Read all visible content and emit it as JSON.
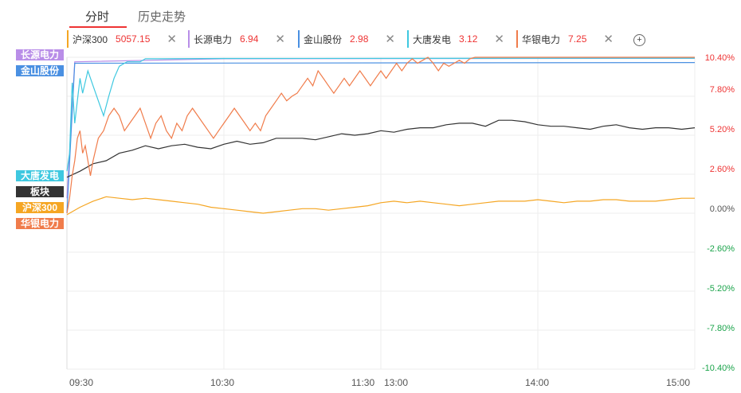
{
  "tabs": {
    "intraday": "分时",
    "history": "历史走势"
  },
  "legend": [
    {
      "name": "沪深300",
      "value": "5057.15",
      "color": "#f5a623"
    },
    {
      "name": "长源电力",
      "value": "6.94",
      "color": "#b98ee8"
    },
    {
      "name": "金山股份",
      "value": "2.98",
      "color": "#4a90e2"
    },
    {
      "name": "大唐发电",
      "value": "3.12",
      "color": "#3ec8e0"
    },
    {
      "name": "华银电力",
      "value": "7.25",
      "color": "#f07c4b"
    }
  ],
  "add_icon": "plus-circle-icon",
  "close_icon": "close-icon",
  "tags": [
    {
      "label": "长源电力",
      "color": "#b98ee8"
    },
    {
      "label": "金山股份",
      "color": "#4a90e2"
    },
    {
      "label": "大唐发电",
      "color": "#3ec8e0"
    },
    {
      "label": "板块",
      "color": "#333333"
    },
    {
      "label": "沪深300",
      "color": "#f5a623"
    },
    {
      "label": "华银电力",
      "color": "#f07c4b"
    }
  ],
  "chart_data": {
    "type": "line",
    "y_ticks": [
      "10.40%",
      "7.80%",
      "5.20%",
      "2.60%",
      "0.00%",
      "-2.60%",
      "-5.20%",
      "-7.80%",
      "-10.40%"
    ],
    "x_ticks": [
      "09:30",
      "10:30",
      "11:30",
      "13:00",
      "14:00",
      "15:00"
    ],
    "ylim": [
      -10.4,
      10.4
    ],
    "series": [
      {
        "name": "长源电力",
        "color": "#b98ee8",
        "points": [
          [
            0,
            1.0
          ],
          [
            3,
            10.1
          ],
          [
            60,
            10.3
          ],
          [
            240,
            10.33
          ]
        ]
      },
      {
        "name": "金山股份",
        "color": "#4a90e2",
        "points": [
          [
            0,
            0.0
          ],
          [
            3,
            10.0
          ],
          [
            240,
            10.05
          ]
        ]
      },
      {
        "name": "大唐发电",
        "color": "#3ec8e0",
        "points": [
          [
            0,
            2.8
          ],
          [
            1,
            4.0
          ],
          [
            2,
            8.7
          ],
          [
            3,
            6.0
          ],
          [
            4,
            7.5
          ],
          [
            5,
            9.0
          ],
          [
            6,
            8.0
          ],
          [
            8,
            9.5
          ],
          [
            10,
            8.5
          ],
          [
            12,
            7.5
          ],
          [
            14,
            6.5
          ],
          [
            16,
            7.8
          ],
          [
            18,
            9.0
          ],
          [
            20,
            9.8
          ],
          [
            22,
            10.0
          ],
          [
            23,
            10.1
          ],
          [
            25,
            10.1
          ],
          [
            28,
            10.1
          ],
          [
            30,
            10.3
          ],
          [
            35,
            10.3
          ],
          [
            60,
            10.32
          ],
          [
            240,
            10.34
          ]
        ]
      },
      {
        "name": "板块",
        "color": "#333333",
        "points": [
          [
            0,
            2.4
          ],
          [
            5,
            2.8
          ],
          [
            10,
            3.3
          ],
          [
            15,
            3.5
          ],
          [
            20,
            4.0
          ],
          [
            25,
            4.2
          ],
          [
            30,
            4.5
          ],
          [
            35,
            4.3
          ],
          [
            40,
            4.5
          ],
          [
            45,
            4.6
          ],
          [
            50,
            4.4
          ],
          [
            55,
            4.3
          ],
          [
            60,
            4.6
          ],
          [
            65,
            4.8
          ],
          [
            70,
            4.6
          ],
          [
            75,
            4.7
          ],
          [
            80,
            5.0
          ],
          [
            85,
            5.0
          ],
          [
            90,
            5.0
          ],
          [
            95,
            4.9
          ],
          [
            100,
            5.1
          ],
          [
            105,
            5.3
          ],
          [
            110,
            5.2
          ],
          [
            115,
            5.3
          ],
          [
            120,
            5.5
          ],
          [
            125,
            5.4
          ],
          [
            130,
            5.6
          ],
          [
            135,
            5.7
          ],
          [
            140,
            5.7
          ],
          [
            145,
            5.9
          ],
          [
            150,
            6.0
          ],
          [
            155,
            6.0
          ],
          [
            160,
            5.8
          ],
          [
            165,
            6.2
          ],
          [
            170,
            6.2
          ],
          [
            175,
            6.1
          ],
          [
            180,
            5.9
          ],
          [
            185,
            5.8
          ],
          [
            190,
            5.8
          ],
          [
            195,
            5.7
          ],
          [
            200,
            5.6
          ],
          [
            205,
            5.8
          ],
          [
            210,
            5.9
          ],
          [
            215,
            5.7
          ],
          [
            220,
            5.6
          ],
          [
            225,
            5.7
          ],
          [
            230,
            5.7
          ],
          [
            235,
            5.6
          ],
          [
            240,
            5.7
          ]
        ]
      },
      {
        "name": "沪深300",
        "color": "#f5a623",
        "points": [
          [
            0,
            -0.1
          ],
          [
            5,
            0.4
          ],
          [
            10,
            0.8
          ],
          [
            15,
            1.1
          ],
          [
            20,
            1.0
          ],
          [
            25,
            0.9
          ],
          [
            30,
            1.0
          ],
          [
            35,
            0.9
          ],
          [
            40,
            0.8
          ],
          [
            45,
            0.7
          ],
          [
            50,
            0.6
          ],
          [
            55,
            0.4
          ],
          [
            60,
            0.3
          ],
          [
            65,
            0.2
          ],
          [
            70,
            0.1
          ],
          [
            75,
            0.0
          ],
          [
            80,
            0.1
          ],
          [
            85,
            0.2
          ],
          [
            90,
            0.3
          ],
          [
            95,
            0.3
          ],
          [
            100,
            0.2
          ],
          [
            105,
            0.3
          ],
          [
            110,
            0.4
          ],
          [
            115,
            0.5
          ],
          [
            120,
            0.7
          ],
          [
            125,
            0.8
          ],
          [
            130,
            0.7
          ],
          [
            135,
            0.8
          ],
          [
            140,
            0.7
          ],
          [
            145,
            0.6
          ],
          [
            150,
            0.5
          ],
          [
            155,
            0.6
          ],
          [
            160,
            0.7
          ],
          [
            165,
            0.8
          ],
          [
            170,
            0.8
          ],
          [
            175,
            0.8
          ],
          [
            180,
            0.9
          ],
          [
            185,
            0.8
          ],
          [
            190,
            0.7
          ],
          [
            195,
            0.8
          ],
          [
            200,
            0.8
          ],
          [
            205,
            0.9
          ],
          [
            210,
            0.9
          ],
          [
            215,
            0.8
          ],
          [
            220,
            0.8
          ],
          [
            225,
            0.8
          ],
          [
            230,
            0.9
          ],
          [
            235,
            1.0
          ],
          [
            240,
            1.0
          ]
        ]
      },
      {
        "name": "华银电力",
        "color": "#f07c4b",
        "points": [
          [
            0,
            0.0
          ],
          [
            1,
            1.0
          ],
          [
            2,
            2.5
          ],
          [
            3,
            3.5
          ],
          [
            4,
            5.0
          ],
          [
            5,
            5.5
          ],
          [
            6,
            4.0
          ],
          [
            7,
            4.5
          ],
          [
            8,
            3.5
          ],
          [
            9,
            2.5
          ],
          [
            10,
            3.5
          ],
          [
            12,
            5.0
          ],
          [
            14,
            5.5
          ],
          [
            16,
            6.5
          ],
          [
            18,
            7.0
          ],
          [
            20,
            6.5
          ],
          [
            22,
            5.5
          ],
          [
            24,
            6.0
          ],
          [
            26,
            6.5
          ],
          [
            28,
            7.0
          ],
          [
            30,
            6.0
          ],
          [
            32,
            5.0
          ],
          [
            34,
            6.0
          ],
          [
            36,
            6.5
          ],
          [
            38,
            5.5
          ],
          [
            40,
            5.0
          ],
          [
            42,
            6.0
          ],
          [
            44,
            5.5
          ],
          [
            46,
            6.5
          ],
          [
            48,
            7.0
          ],
          [
            50,
            6.5
          ],
          [
            52,
            6.0
          ],
          [
            54,
            5.5
          ],
          [
            56,
            5.0
          ],
          [
            58,
            5.5
          ],
          [
            60,
            6.0
          ],
          [
            62,
            6.5
          ],
          [
            64,
            7.0
          ],
          [
            66,
            6.5
          ],
          [
            68,
            6.0
          ],
          [
            70,
            5.5
          ],
          [
            72,
            6.0
          ],
          [
            74,
            5.5
          ],
          [
            76,
            6.5
          ],
          [
            78,
            7.0
          ],
          [
            80,
            7.5
          ],
          [
            82,
            8.0
          ],
          [
            84,
            7.5
          ],
          [
            86,
            7.8
          ],
          [
            88,
            8.0
          ],
          [
            90,
            8.5
          ],
          [
            92,
            9.0
          ],
          [
            94,
            8.5
          ],
          [
            96,
            9.5
          ],
          [
            98,
            9.0
          ],
          [
            100,
            8.5
          ],
          [
            102,
            8.0
          ],
          [
            104,
            8.5
          ],
          [
            106,
            9.0
          ],
          [
            108,
            8.5
          ],
          [
            110,
            9.0
          ],
          [
            112,
            9.5
          ],
          [
            114,
            9.0
          ],
          [
            116,
            8.5
          ],
          [
            118,
            9.0
          ],
          [
            120,
            9.5
          ],
          [
            122,
            9.0
          ],
          [
            124,
            9.5
          ],
          [
            126,
            10.0
          ],
          [
            128,
            9.5
          ],
          [
            130,
            10.0
          ],
          [
            132,
            10.3
          ],
          [
            134,
            10.0
          ],
          [
            136,
            10.2
          ],
          [
            138,
            10.4
          ],
          [
            140,
            10.0
          ],
          [
            142,
            9.5
          ],
          [
            144,
            10.0
          ],
          [
            146,
            9.8
          ],
          [
            148,
            10.0
          ],
          [
            150,
            10.2
          ],
          [
            152,
            10.0
          ],
          [
            154,
            10.3
          ],
          [
            156,
            10.4
          ],
          [
            160,
            10.4
          ],
          [
            200,
            10.4
          ],
          [
            240,
            10.4
          ]
        ]
      }
    ]
  }
}
